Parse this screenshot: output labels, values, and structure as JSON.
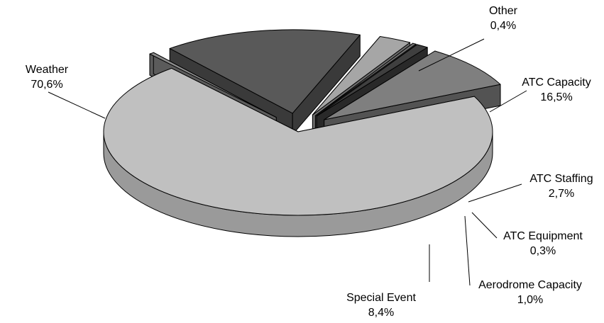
{
  "chart_data": {
    "type": "pie",
    "style": "3d-exploded",
    "title": "",
    "slices": [
      {
        "name": "Weather",
        "value": 70.6,
        "label": "70,6%",
        "color": "#c0c0c0"
      },
      {
        "name": "Other",
        "value": 0.4,
        "label": "0,4%",
        "color": "#8c8c8c"
      },
      {
        "name": "ATC Capacity",
        "value": 16.5,
        "label": "16,5%",
        "color": "#595959"
      },
      {
        "name": "ATC Staffing",
        "value": 2.7,
        "label": "2,7%",
        "color": "#a6a6a6"
      },
      {
        "name": "ATC Equipment",
        "value": 0.3,
        "label": "0,3%",
        "color": "#6f6f6f"
      },
      {
        "name": "Aerodrome Capacity",
        "value": 1.0,
        "label": "1,0%",
        "color": "#3f3f3f"
      },
      {
        "name": "Special Event",
        "value": 8.4,
        "label": "8,4%",
        "color": "#7f7f7f"
      }
    ]
  }
}
